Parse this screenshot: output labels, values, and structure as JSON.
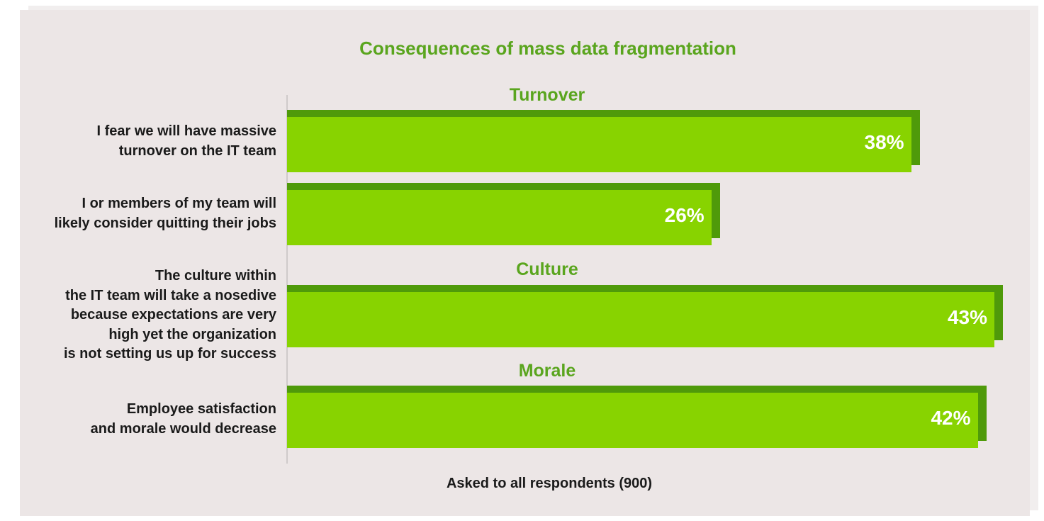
{
  "chart_data": {
    "type": "bar",
    "orientation": "horizontal",
    "title": "Consequences of mass data fragmentation",
    "groups": [
      "Turnover",
      "Culture",
      "Morale"
    ],
    "categories": [
      "I fear we will have massive\nturnover on the IT team",
      "I or members of my team will\nlikely consider quitting their jobs",
      "The culture within\nthe IT team will take a nosedive\nbecause expectations are very\nhigh yet the organization\nis not setting us up for success",
      "Employee satisfaction\nand morale would decrease"
    ],
    "category_groups": [
      "Turnover",
      "Turnover",
      "Culture",
      "Morale"
    ],
    "values": [
      38,
      26,
      43,
      42
    ],
    "value_labels": [
      "38%",
      "26%",
      "43%",
      "42%"
    ],
    "xlim": [
      0,
      43
    ],
    "grid": false,
    "footnote": "Asked to all respondents (900)",
    "colors": {
      "bar": "#88d300",
      "bar_shadow": "#4f9a0a",
      "title": "#5aa51e",
      "background": "#ece6e6"
    }
  }
}
